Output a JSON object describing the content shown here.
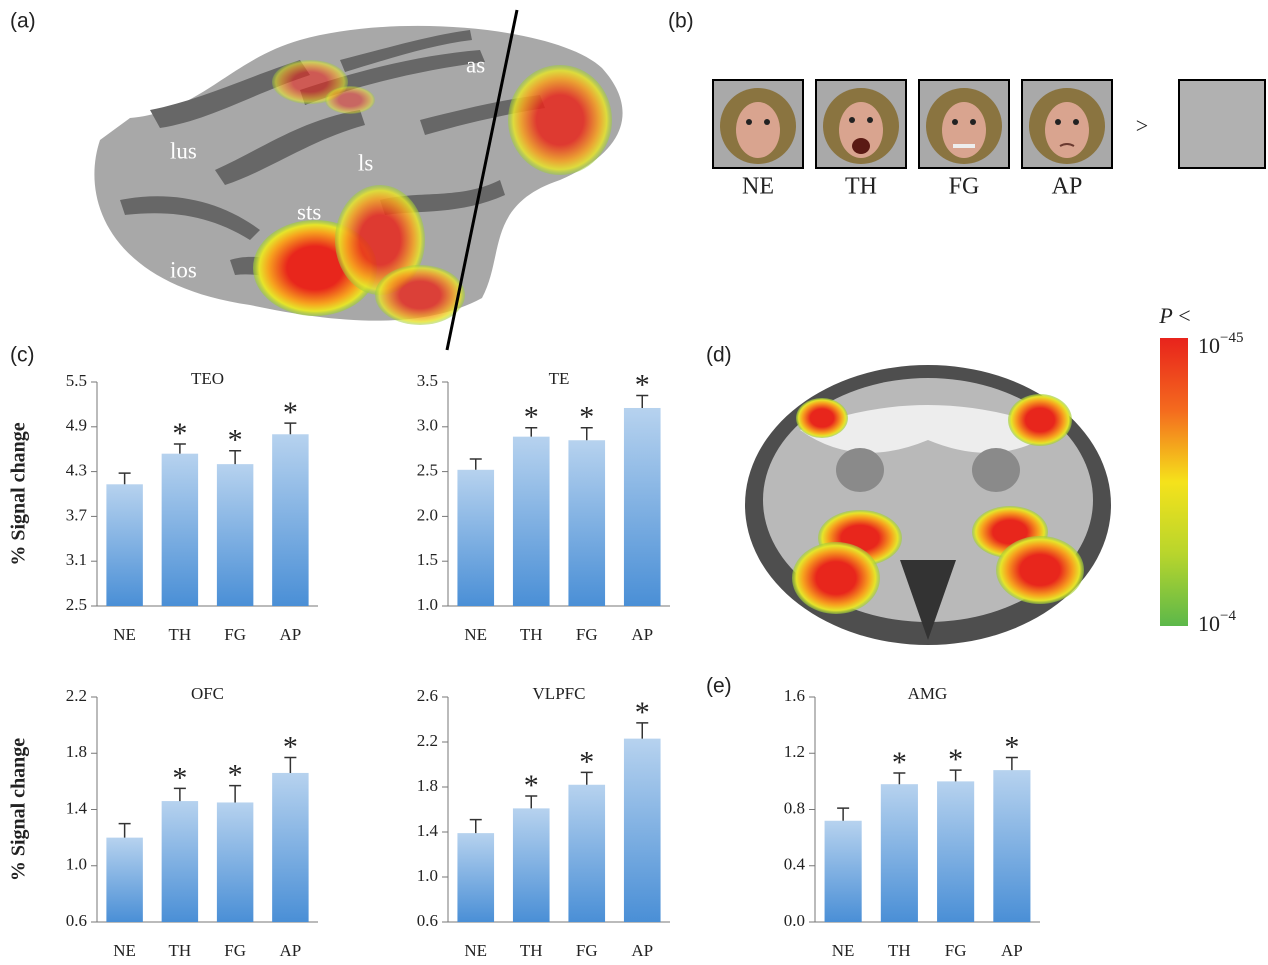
{
  "chart_data": [
    {
      "type": "bar",
      "title": "TEO",
      "ylabel": "% Signal change",
      "color": "#4a8fd6",
      "categories": [
        "NE",
        "TH",
        "FG",
        "AP"
      ],
      "values": [
        4.13,
        4.54,
        4.4,
        4.8
      ],
      "errors": [
        0.15,
        0.13,
        0.18,
        0.15
      ],
      "ylim": [
        2.5,
        5.5
      ],
      "yticks": [
        2.5,
        3.1,
        3.7,
        4.3,
        4.9,
        5.5
      ],
      "annotations": [
        {
          "category": "TH",
          "text": "*"
        },
        {
          "category": "FG",
          "text": "*"
        },
        {
          "category": "AP",
          "text": "*"
        }
      ]
    },
    {
      "type": "bar",
      "title": "TE",
      "color": "#4a8fd6",
      "categories": [
        "NE",
        "TH",
        "FG",
        "AP"
      ],
      "values": [
        2.52,
        2.89,
        2.85,
        3.21
      ],
      "errors": [
        0.12,
        0.1,
        0.14,
        0.14
      ],
      "ylim": [
        1,
        3.5
      ],
      "yticks": [
        {
          "value": 1,
          "label": "1.0"
        },
        1.5,
        {
          "value": 2,
          "label": "2.0"
        },
        2.5,
        {
          "value": 3,
          "label": "3.0"
        },
        3.5
      ],
      "annotations": [
        {
          "category": "TH",
          "text": "*"
        },
        {
          "category": "FG",
          "text": "*"
        },
        {
          "category": "AP",
          "text": "*"
        }
      ]
    },
    {
      "type": "bar",
      "title": "OFC",
      "ylabel": "% Signal change",
      "color": "#4a8fd6",
      "categories": [
        "NE",
        "TH",
        "FG",
        "AP"
      ],
      "values": [
        1.2,
        1.46,
        1.45,
        1.66
      ],
      "errors": [
        0.1,
        0.09,
        0.12,
        0.11
      ],
      "ylim": [
        0.6,
        2.2
      ],
      "yticks": [
        0.6,
        {
          "value": 1,
          "label": "1.0"
        },
        1.4,
        1.8,
        2.2
      ],
      "annotations": [
        {
          "category": "TH",
          "text": "*"
        },
        {
          "category": "FG",
          "text": "*"
        },
        {
          "category": "AP",
          "text": "*"
        }
      ]
    },
    {
      "type": "bar",
      "title": "VLPFC",
      "color": "#4a8fd6",
      "categories": [
        "NE",
        "TH",
        "FG",
        "AP"
      ],
      "values": [
        1.39,
        1.61,
        1.82,
        2.23
      ],
      "errors": [
        0.12,
        0.11,
        0.11,
        0.14
      ],
      "ylim": [
        0.6,
        2.6
      ],
      "yticks": [
        0.6,
        {
          "value": 1,
          "label": "1.0"
        },
        1.4,
        1.8,
        2.2,
        2.6
      ],
      "annotations": [
        {
          "category": "TH",
          "text": "*"
        },
        {
          "category": "FG",
          "text": "*"
        },
        {
          "category": "AP",
          "text": "*"
        }
      ]
    },
    {
      "type": "bar",
      "title": "AMG",
      "color": "#4a8fd6",
      "categories": [
        "NE",
        "TH",
        "FG",
        "AP"
      ],
      "values": [
        0.72,
        0.98,
        1.0,
        1.08
      ],
      "errors": [
        0.09,
        0.08,
        0.08,
        0.09
      ],
      "ylim": [
        0,
        1.6
      ],
      "yticks": [
        {
          "value": 0,
          "label": "0.0"
        },
        0.4,
        0.8,
        1.2,
        1.6
      ],
      "annotations": [
        {
          "category": "TH",
          "text": "*"
        },
        {
          "category": "FG",
          "text": "*"
        },
        {
          "category": "AP",
          "text": "*"
        }
      ]
    }
  ],
  "panel_labels": [
    "(a)",
    "(b)",
    "(c)",
    "(d)",
    "(e)"
  ],
  "brain_labels": [
    "as",
    "lus",
    "ls",
    "sts",
    "ios"
  ],
  "stimuli": {
    "faces": [
      "NE",
      "TH",
      "FG",
      "AP"
    ],
    "comparator": ">"
  },
  "colorbar": {
    "title": {
      "symbol": "P",
      "relation": "<"
    },
    "max": {
      "base": "10",
      "exponent": "−45"
    },
    "min": {
      "base": "10",
      "exponent": "−4"
    }
  }
}
